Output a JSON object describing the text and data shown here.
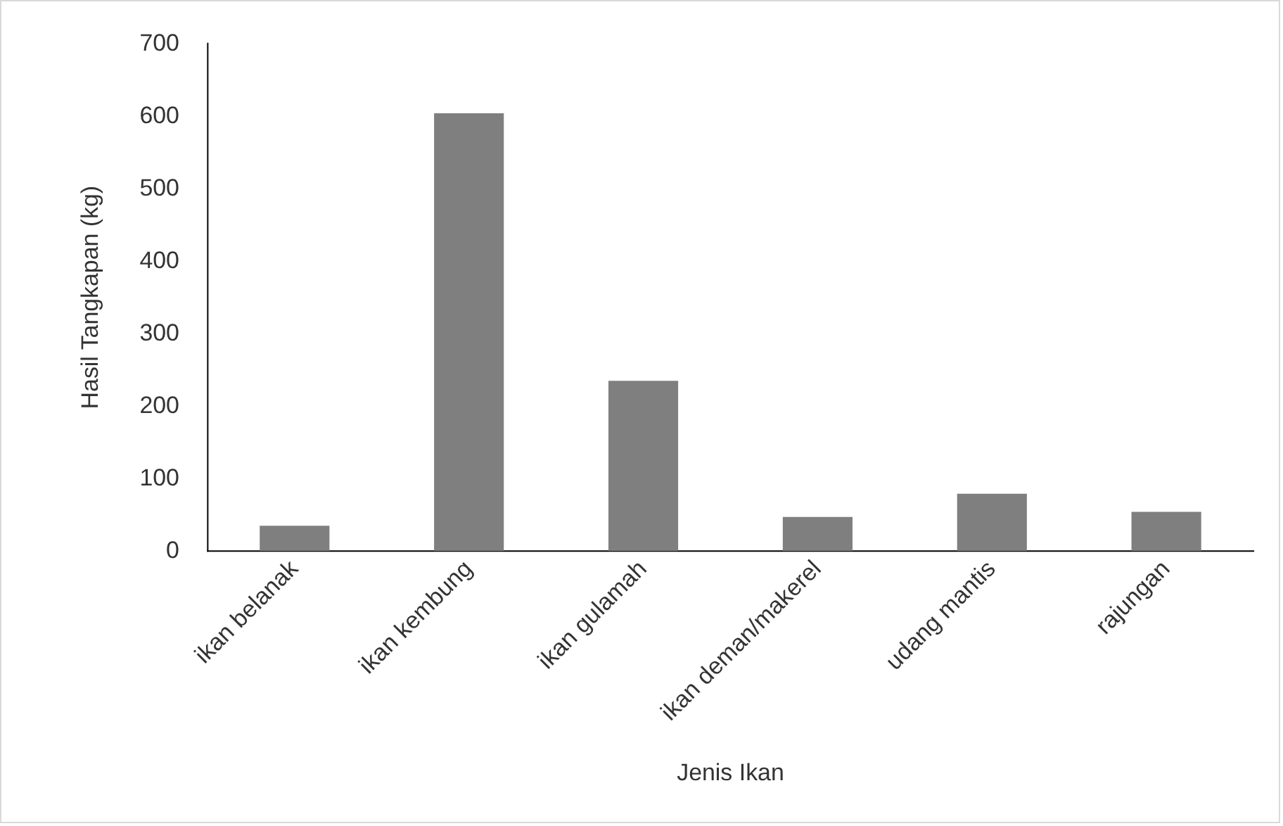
{
  "chart_data": {
    "type": "bar",
    "xlabel": "Jenis Ikan",
    "ylabel": "Hasil Tangkapan (kg)",
    "categories": [
      "ikan belanak",
      "ikan kembung",
      "ikan gulamah",
      "ikan deman/makerel",
      "udang mantis",
      "rajungan"
    ],
    "values": [
      35,
      604,
      235,
      47,
      79,
      54
    ],
    "color": "#7f7f7f",
    "ylim": [
      0,
      700
    ],
    "yticks": [
      0,
      100,
      200,
      300,
      400,
      500,
      600,
      700
    ],
    "grid": false,
    "legend": false
  }
}
